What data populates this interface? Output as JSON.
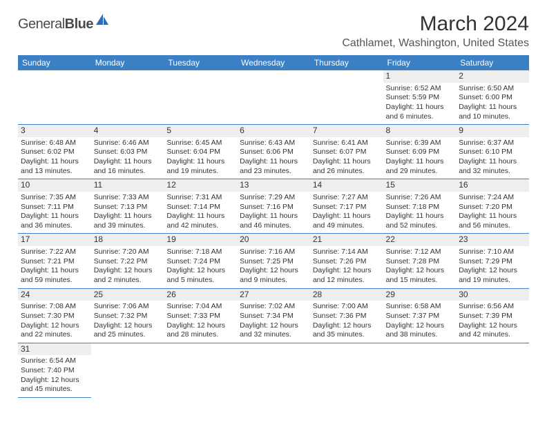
{
  "logo": {
    "name1": "General",
    "name2": "Blue"
  },
  "title": "March 2024",
  "location": "Cathlamet, Washington, United States",
  "colors": {
    "headerBg": "#3b7fc4",
    "dayBg": "#eeeeee",
    "rule": "#3b7fc4"
  },
  "days": [
    "Sunday",
    "Monday",
    "Tuesday",
    "Wednesday",
    "Thursday",
    "Friday",
    "Saturday"
  ],
  "grid": [
    [
      null,
      null,
      null,
      null,
      null,
      {
        "n": "1",
        "sr": "Sunrise: 6:52 AM",
        "ss": "Sunset: 5:59 PM",
        "dl": "Daylight: 11 hours and 6 minutes."
      },
      {
        "n": "2",
        "sr": "Sunrise: 6:50 AM",
        "ss": "Sunset: 6:00 PM",
        "dl": "Daylight: 11 hours and 10 minutes."
      }
    ],
    [
      {
        "n": "3",
        "sr": "Sunrise: 6:48 AM",
        "ss": "Sunset: 6:02 PM",
        "dl": "Daylight: 11 hours and 13 minutes."
      },
      {
        "n": "4",
        "sr": "Sunrise: 6:46 AM",
        "ss": "Sunset: 6:03 PM",
        "dl": "Daylight: 11 hours and 16 minutes."
      },
      {
        "n": "5",
        "sr": "Sunrise: 6:45 AM",
        "ss": "Sunset: 6:04 PM",
        "dl": "Daylight: 11 hours and 19 minutes."
      },
      {
        "n": "6",
        "sr": "Sunrise: 6:43 AM",
        "ss": "Sunset: 6:06 PM",
        "dl": "Daylight: 11 hours and 23 minutes."
      },
      {
        "n": "7",
        "sr": "Sunrise: 6:41 AM",
        "ss": "Sunset: 6:07 PM",
        "dl": "Daylight: 11 hours and 26 minutes."
      },
      {
        "n": "8",
        "sr": "Sunrise: 6:39 AM",
        "ss": "Sunset: 6:09 PM",
        "dl": "Daylight: 11 hours and 29 minutes."
      },
      {
        "n": "9",
        "sr": "Sunrise: 6:37 AM",
        "ss": "Sunset: 6:10 PM",
        "dl": "Daylight: 11 hours and 32 minutes."
      }
    ],
    [
      {
        "n": "10",
        "sr": "Sunrise: 7:35 AM",
        "ss": "Sunset: 7:11 PM",
        "dl": "Daylight: 11 hours and 36 minutes."
      },
      {
        "n": "11",
        "sr": "Sunrise: 7:33 AM",
        "ss": "Sunset: 7:13 PM",
        "dl": "Daylight: 11 hours and 39 minutes."
      },
      {
        "n": "12",
        "sr": "Sunrise: 7:31 AM",
        "ss": "Sunset: 7:14 PM",
        "dl": "Daylight: 11 hours and 42 minutes."
      },
      {
        "n": "13",
        "sr": "Sunrise: 7:29 AM",
        "ss": "Sunset: 7:16 PM",
        "dl": "Daylight: 11 hours and 46 minutes."
      },
      {
        "n": "14",
        "sr": "Sunrise: 7:27 AM",
        "ss": "Sunset: 7:17 PM",
        "dl": "Daylight: 11 hours and 49 minutes."
      },
      {
        "n": "15",
        "sr": "Sunrise: 7:26 AM",
        "ss": "Sunset: 7:18 PM",
        "dl": "Daylight: 11 hours and 52 minutes."
      },
      {
        "n": "16",
        "sr": "Sunrise: 7:24 AM",
        "ss": "Sunset: 7:20 PM",
        "dl": "Daylight: 11 hours and 56 minutes."
      }
    ],
    [
      {
        "n": "17",
        "sr": "Sunrise: 7:22 AM",
        "ss": "Sunset: 7:21 PM",
        "dl": "Daylight: 11 hours and 59 minutes."
      },
      {
        "n": "18",
        "sr": "Sunrise: 7:20 AM",
        "ss": "Sunset: 7:22 PM",
        "dl": "Daylight: 12 hours and 2 minutes."
      },
      {
        "n": "19",
        "sr": "Sunrise: 7:18 AM",
        "ss": "Sunset: 7:24 PM",
        "dl": "Daylight: 12 hours and 5 minutes."
      },
      {
        "n": "20",
        "sr": "Sunrise: 7:16 AM",
        "ss": "Sunset: 7:25 PM",
        "dl": "Daylight: 12 hours and 9 minutes."
      },
      {
        "n": "21",
        "sr": "Sunrise: 7:14 AM",
        "ss": "Sunset: 7:26 PM",
        "dl": "Daylight: 12 hours and 12 minutes."
      },
      {
        "n": "22",
        "sr": "Sunrise: 7:12 AM",
        "ss": "Sunset: 7:28 PM",
        "dl": "Daylight: 12 hours and 15 minutes."
      },
      {
        "n": "23",
        "sr": "Sunrise: 7:10 AM",
        "ss": "Sunset: 7:29 PM",
        "dl": "Daylight: 12 hours and 19 minutes."
      }
    ],
    [
      {
        "n": "24",
        "sr": "Sunrise: 7:08 AM",
        "ss": "Sunset: 7:30 PM",
        "dl": "Daylight: 12 hours and 22 minutes."
      },
      {
        "n": "25",
        "sr": "Sunrise: 7:06 AM",
        "ss": "Sunset: 7:32 PM",
        "dl": "Daylight: 12 hours and 25 minutes."
      },
      {
        "n": "26",
        "sr": "Sunrise: 7:04 AM",
        "ss": "Sunset: 7:33 PM",
        "dl": "Daylight: 12 hours and 28 minutes."
      },
      {
        "n": "27",
        "sr": "Sunrise: 7:02 AM",
        "ss": "Sunset: 7:34 PM",
        "dl": "Daylight: 12 hours and 32 minutes."
      },
      {
        "n": "28",
        "sr": "Sunrise: 7:00 AM",
        "ss": "Sunset: 7:36 PM",
        "dl": "Daylight: 12 hours and 35 minutes."
      },
      {
        "n": "29",
        "sr": "Sunrise: 6:58 AM",
        "ss": "Sunset: 7:37 PM",
        "dl": "Daylight: 12 hours and 38 minutes."
      },
      {
        "n": "30",
        "sr": "Sunrise: 6:56 AM",
        "ss": "Sunset: 7:39 PM",
        "dl": "Daylight: 12 hours and 42 minutes."
      }
    ],
    [
      {
        "n": "31",
        "sr": "Sunrise: 6:54 AM",
        "ss": "Sunset: 7:40 PM",
        "dl": "Daylight: 12 hours and 45 minutes."
      },
      null,
      null,
      null,
      null,
      null,
      null
    ]
  ]
}
